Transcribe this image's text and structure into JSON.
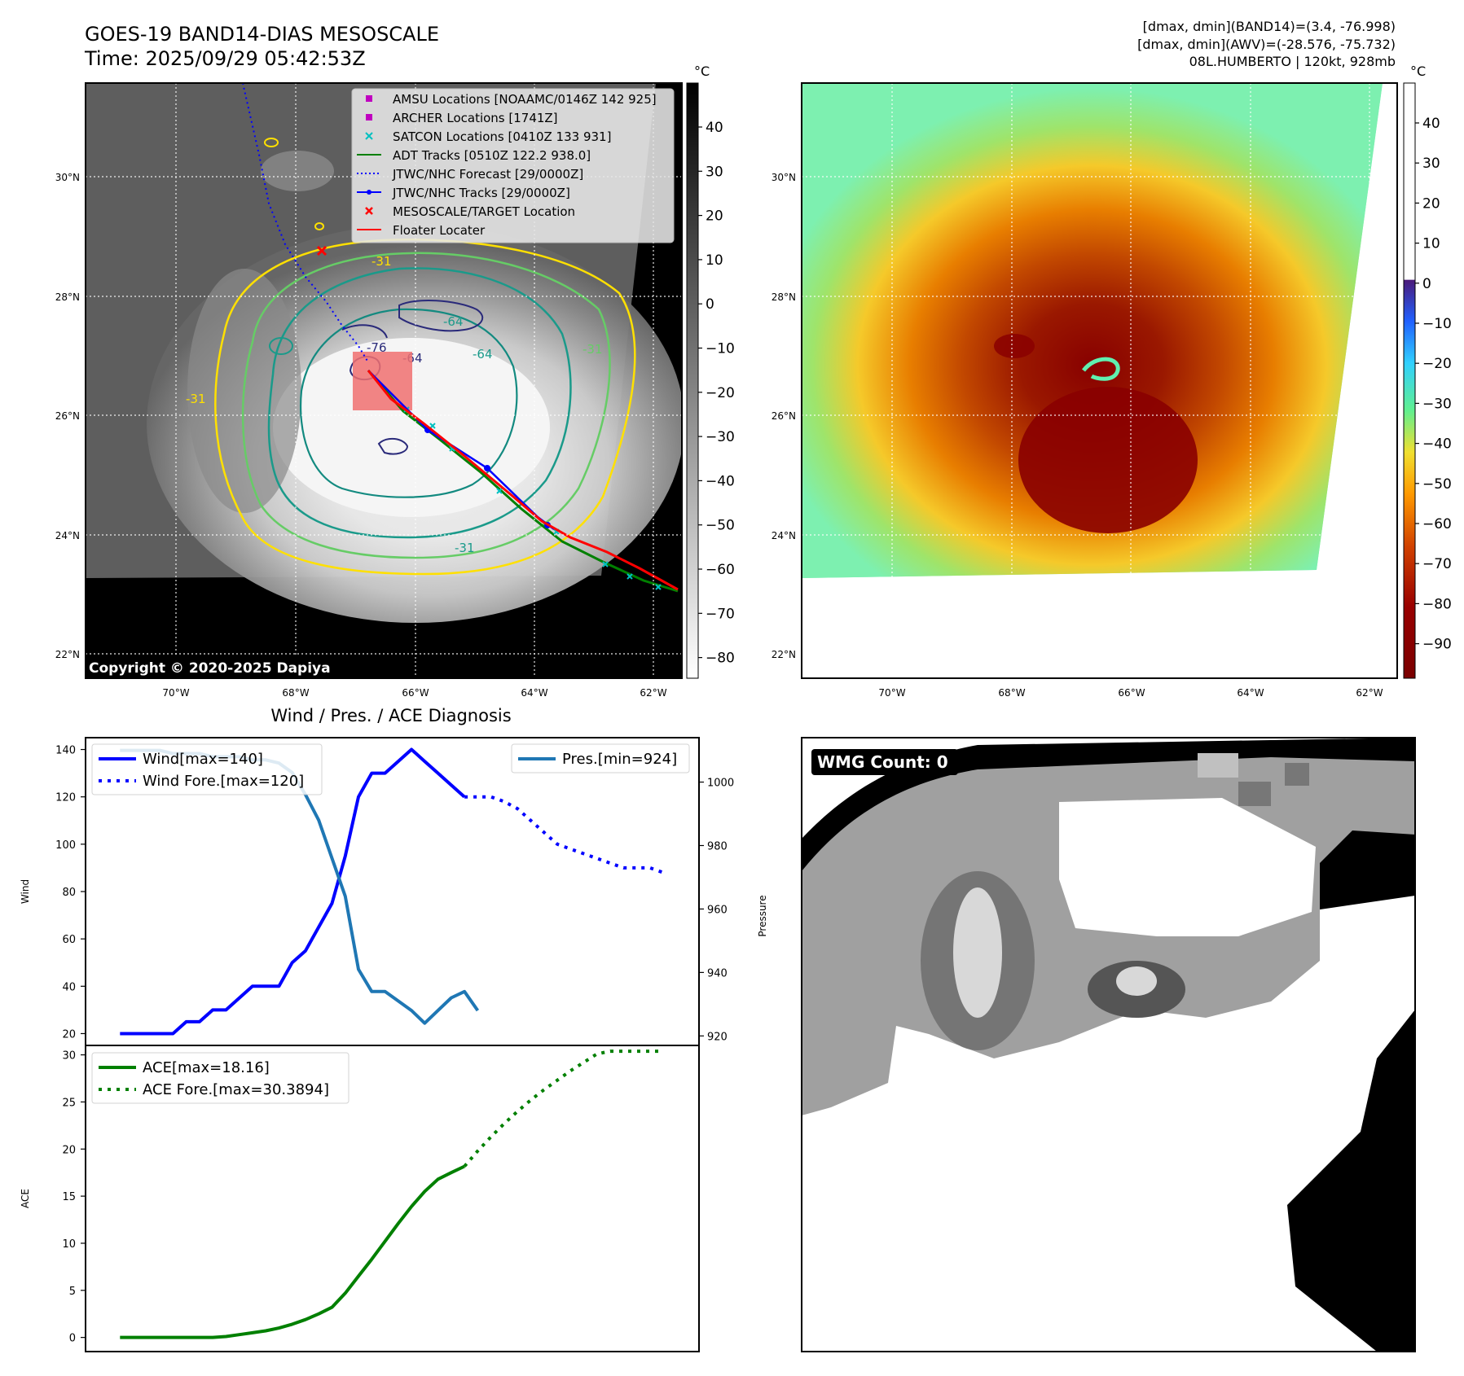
{
  "header": {
    "title": "GOES-19 BAND14-DIAS MESOSCALE",
    "time": "Time: 2025/09/29 05:42:53Z",
    "stat1": "[dmax, dmin](BAND14)=(3.4, -76.998)",
    "stat2": "[dmax, dmin](AWV)=(-28.576, -75.732)",
    "storm": "08L.HUMBERTO | 120kt, 928mb"
  },
  "map": {
    "lat_labels": [
      "30°N",
      "28°N",
      "26°N",
      "24°N",
      "22°N"
    ],
    "lon_labels": [
      "70°W",
      "68°W",
      "66°W",
      "64°W",
      "62°W"
    ],
    "copyright": "Copyright © 2020-2025 Dapiya",
    "contour_labels": [
      "-31",
      "-64",
      "-76",
      "-64",
      "-64",
      "-31",
      "-31",
      "-31"
    ],
    "legend": [
      {
        "label": "AMSU Locations [NOAAMC/0146Z 142 925]",
        "color": "#c000c0",
        "marker": "square"
      },
      {
        "label": "ARCHER Locations [1741Z]",
        "color": "#c000c0",
        "marker": "square"
      },
      {
        "label": "SATCON Locations [0410Z 133 931]",
        "color": "#00c0c0",
        "marker": "x"
      },
      {
        "label": "ADT Tracks [0510Z 122.2 938.0]",
        "color": "#008000",
        "marker": "line"
      },
      {
        "label": "JTWC/NHC Forecast [29/0000Z]",
        "color": "#0000ff",
        "marker": "dotted"
      },
      {
        "label": "JTWC/NHC Tracks [29/0000Z]",
        "color": "#0000ff",
        "marker": "line-dot"
      },
      {
        "label": "MESOSCALE/TARGET Location",
        "color": "#ff0000",
        "marker": "x"
      },
      {
        "label": "Floater Locater",
        "color": "#ff0000",
        "marker": "line"
      }
    ],
    "gray_colorbar": {
      "unit": "°C",
      "ticks": [
        "40",
        "30",
        "20",
        "10",
        "0",
        "−10",
        "−20",
        "−30",
        "−40",
        "−50",
        "−60",
        "−70",
        "−80"
      ]
    },
    "color_colorbar": {
      "unit": "°C",
      "ticks": [
        "40",
        "30",
        "20",
        "10",
        "0",
        "−10",
        "−20",
        "−30",
        "−40",
        "−50",
        "−60",
        "−70",
        "−80",
        "−90"
      ]
    }
  },
  "chart_data": [
    {
      "type": "line",
      "title": "Wind / Pres. / ACE Diagnosis",
      "ylabel": "Wind",
      "ylabel_right": "Pressure",
      "ylim": [
        15,
        145
      ],
      "ylim_right": [
        917,
        1014
      ],
      "yticks": [
        "140",
        "120",
        "100",
        "80",
        "60",
        "40",
        "20"
      ],
      "yticks_right": [
        "1000",
        "980",
        "960",
        "940",
        "920"
      ],
      "x": [
        0,
        1,
        2,
        3,
        4,
        5,
        6,
        7,
        8,
        9,
        10,
        11,
        12,
        13,
        14,
        15,
        16,
        17,
        18,
        19,
        20,
        21,
        22,
        23,
        24,
        25,
        26,
        27,
        28,
        29,
        30,
        31,
        32,
        33,
        34,
        35,
        36,
        37,
        38,
        39,
        40,
        41
      ],
      "series": [
        {
          "name": "Wind[max=140]",
          "color": "#0000ff",
          "style": "solid",
          "values": [
            20,
            20,
            20,
            20,
            20,
            25,
            25,
            30,
            30,
            35,
            40,
            40,
            40,
            50,
            55,
            65,
            75,
            95,
            120,
            130,
            130,
            135,
            140,
            135,
            130,
            125,
            120,
            null,
            null,
            null,
            null,
            null,
            null,
            null,
            null,
            null,
            null,
            null,
            null,
            null,
            null,
            null
          ]
        },
        {
          "name": "Wind Fore.[max=120]",
          "color": "#0000ff",
          "style": "dotted",
          "values": [
            null,
            null,
            null,
            null,
            null,
            null,
            null,
            null,
            null,
            null,
            null,
            null,
            null,
            null,
            null,
            null,
            null,
            null,
            null,
            null,
            null,
            null,
            null,
            null,
            null,
            null,
            120,
            120,
            120,
            118,
            115,
            110,
            105,
            100,
            98,
            96,
            94,
            92,
            90,
            90,
            90,
            88
          ]
        },
        {
          "name": "Pres.[min=924]",
          "color": "#1f77b4",
          "style": "solid",
          "axis": "right",
          "values": [
            1010,
            1010,
            1010,
            1010,
            1009,
            1009,
            1009,
            1008,
            1008,
            1008,
            1007,
            1007,
            1006,
            1003,
            996,
            988,
            976,
            964,
            941,
            934,
            934,
            931,
            928,
            924,
            928,
            932,
            934,
            928,
            null,
            null,
            null,
            null,
            null,
            null,
            null,
            null,
            null,
            null,
            null,
            null,
            null,
            null
          ]
        }
      ]
    },
    {
      "type": "line",
      "ylabel": "ACE",
      "ylim": [
        -1.5,
        31
      ],
      "yticks": [
        "30",
        "25",
        "20",
        "15",
        "10",
        "5",
        "0"
      ],
      "x": [
        0,
        1,
        2,
        3,
        4,
        5,
        6,
        7,
        8,
        9,
        10,
        11,
        12,
        13,
        14,
        15,
        16,
        17,
        18,
        19,
        20,
        21,
        22,
        23,
        24,
        25,
        26,
        27,
        28,
        29,
        30,
        31,
        32,
        33,
        34,
        35,
        36,
        37,
        38,
        39,
        40,
        41
      ],
      "series": [
        {
          "name": "ACE[max=18.16]",
          "color": "#008000",
          "style": "solid",
          "values": [
            0,
            0,
            0,
            0,
            0,
            0,
            0,
            0,
            0.1,
            0.3,
            0.5,
            0.7,
            1.0,
            1.4,
            1.9,
            2.5,
            3.2,
            4.7,
            6.5,
            8.3,
            10.2,
            12.1,
            13.9,
            15.5,
            16.8,
            17.5,
            18.16,
            null,
            null,
            null,
            null,
            null,
            null,
            null,
            null,
            null,
            null,
            null,
            null,
            null,
            null,
            null
          ]
        },
        {
          "name": "ACE Fore.[max=30.3894]",
          "color": "#008000",
          "style": "dotted",
          "values": [
            null,
            null,
            null,
            null,
            null,
            null,
            null,
            null,
            null,
            null,
            null,
            null,
            null,
            null,
            null,
            null,
            null,
            null,
            null,
            null,
            null,
            null,
            null,
            null,
            null,
            null,
            18.16,
            19.8,
            21.3,
            22.7,
            24.0,
            25.2,
            26.3,
            27.3,
            28.3,
            29.2,
            30.1,
            30.39,
            30.39,
            30.39,
            30.39,
            30.39
          ]
        }
      ]
    }
  ],
  "wmg": {
    "label": "WMG Count: 0"
  }
}
